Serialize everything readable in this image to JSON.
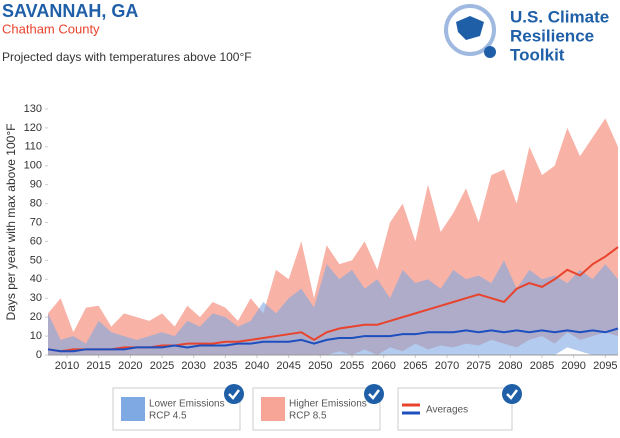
{
  "header": {
    "title": "SAVANNAH, GA",
    "subtitle": "Chatham County",
    "description": "Projected days with temperatures above 100°F",
    "logo": [
      "U.S. Climate",
      "Resilience",
      "Toolkit"
    ]
  },
  "chart_data": {
    "type": "band",
    "y_label": "Days per year with max above 100°F",
    "x": [
      2007,
      2009,
      2011,
      2013,
      2015,
      2017,
      2019,
      2021,
      2023,
      2025,
      2027,
      2029,
      2031,
      2033,
      2035,
      2037,
      2039,
      2041,
      2043,
      2045,
      2047,
      2049,
      2051,
      2053,
      2055,
      2057,
      2059,
      2061,
      2063,
      2065,
      2067,
      2069,
      2071,
      2073,
      2075,
      2077,
      2079,
      2081,
      2083,
      2085,
      2087,
      2089,
      2091,
      2093,
      2095,
      2097
    ],
    "xlim": [
      2007,
      2097
    ],
    "xticks": [
      2010,
      2015,
      2020,
      2025,
      2030,
      2035,
      2040,
      2045,
      2050,
      2055,
      2060,
      2065,
      2070,
      2075,
      2080,
      2085,
      2090,
      2095
    ],
    "ylim": [
      0,
      140
    ],
    "yticks": [
      0,
      10,
      20,
      30,
      40,
      50,
      60,
      70,
      80,
      90,
      100,
      110,
      120,
      130
    ],
    "series": [
      {
        "name": "Higher Emissions",
        "sublabel": "RCP 8.5",
        "color": "#f7a597",
        "values": [
          22,
          30,
          12,
          25,
          26,
          15,
          22,
          20,
          18,
          22,
          15,
          26,
          20,
          28,
          25,
          18,
          30,
          22,
          45,
          40,
          60,
          30,
          58,
          48,
          50,
          60,
          45,
          70,
          80,
          60,
          90,
          65,
          75,
          88,
          70,
          95,
          98,
          80,
          110,
          95,
          100,
          120,
          105,
          115,
          125,
          110
        ],
        "min": [
          0,
          0,
          0,
          0,
          0,
          0,
          0,
          0,
          0,
          0,
          0,
          0,
          0,
          0,
          0,
          0,
          0,
          0,
          0,
          0,
          0,
          0,
          0,
          2,
          0,
          3,
          0,
          4,
          2,
          6,
          3,
          5,
          4,
          6,
          5,
          8,
          6,
          4,
          8,
          10,
          6,
          12,
          8,
          10,
          12,
          10
        ]
      },
      {
        "name": "Lower Emissions",
        "sublabel": "RCP 4.5",
        "color": "#7ea9e2",
        "values": [
          22,
          8,
          10,
          6,
          18,
          12,
          10,
          8,
          10,
          12,
          10,
          18,
          15,
          22,
          20,
          15,
          18,
          28,
          22,
          30,
          35,
          25,
          48,
          40,
          45,
          35,
          40,
          30,
          45,
          38,
          40,
          35,
          45,
          40,
          42,
          38,
          50,
          35,
          45,
          40,
          42,
          38,
          45,
          40,
          48,
          40
        ],
        "min": [
          0,
          0,
          0,
          0,
          0,
          0,
          0,
          0,
          0,
          0,
          0,
          0,
          0,
          0,
          0,
          0,
          0,
          0,
          0,
          0,
          0,
          0,
          0,
          0,
          0,
          0,
          0,
          0,
          0,
          0,
          0,
          0,
          0,
          0,
          0,
          0,
          0,
          0,
          0,
          0,
          0,
          4,
          2,
          0,
          0,
          0
        ]
      }
    ],
    "averages": {
      "label": "Averages",
      "series": [
        {
          "color": "#e8432c",
          "values": [
            3,
            2,
            3,
            3,
            3,
            3,
            4,
            4,
            4,
            5,
            5,
            6,
            6,
            6,
            7,
            7,
            8,
            9,
            10,
            11,
            12,
            8,
            12,
            14,
            15,
            16,
            16,
            18,
            20,
            22,
            24,
            26,
            28,
            30,
            32,
            30,
            28,
            35,
            38,
            36,
            40,
            45,
            42,
            48,
            52,
            57
          ]
        },
        {
          "color": "#1d4fbf",
          "values": [
            3,
            2,
            2,
            3,
            3,
            3,
            3,
            4,
            4,
            4,
            5,
            4,
            5,
            5,
            5,
            6,
            6,
            7,
            7,
            7,
            8,
            6,
            8,
            9,
            9,
            10,
            10,
            10,
            11,
            11,
            12,
            12,
            12,
            13,
            12,
            13,
            12,
            13,
            12,
            13,
            12,
            13,
            12,
            13,
            12,
            14
          ]
        }
      ]
    }
  }
}
